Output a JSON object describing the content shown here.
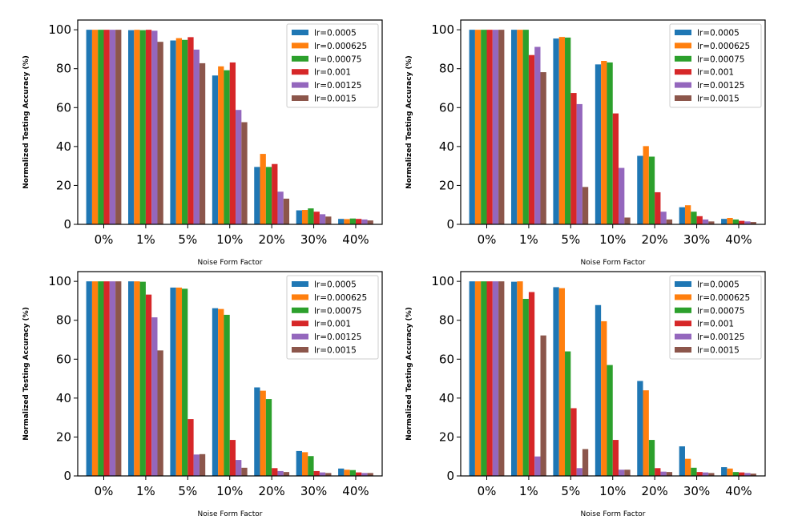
{
  "chart_data": [
    {
      "type": "bar",
      "title": "",
      "xlabel": "Noise Form Factor",
      "ylabel": "Normalized Testing Accuracy (%)",
      "ylim": [
        0,
        105
      ],
      "yticks": [
        0,
        20,
        40,
        60,
        80,
        100
      ],
      "legend": "top-right",
      "categories": [
        "0%",
        "1%",
        "5%",
        "10%",
        "20%",
        "30%",
        "40%"
      ],
      "series": [
        {
          "name": "lr=0.0005",
          "color": "#1f77b4",
          "values": [
            100,
            99.8,
            94.5,
            76.5,
            29.5,
            7.2,
            2.8
          ]
        },
        {
          "name": "lr=0.000625",
          "color": "#ff7f0e",
          "values": [
            100,
            100,
            95.7,
            81.2,
            36.2,
            7.4,
            2.7
          ]
        },
        {
          "name": "lr=0.00075",
          "color": "#2ca02c",
          "values": [
            100,
            99.8,
            94.8,
            79.2,
            29.5,
            8.2,
            3.0
          ]
        },
        {
          "name": "lr=0.001",
          "color": "#d62728",
          "values": [
            100,
            100,
            96.2,
            83.2,
            31.0,
            6.5,
            2.8
          ]
        },
        {
          "name": "lr=0.00125",
          "color": "#9467bd",
          "values": [
            100,
            99.5,
            89.8,
            58.8,
            16.8,
            5.2,
            2.5
          ]
        },
        {
          "name": "lr=0.0015",
          "color": "#8c564b",
          "values": [
            100,
            93.8,
            82.8,
            52.5,
            13.2,
            4.0,
            2.0
          ]
        }
      ]
    },
    {
      "type": "bar",
      "title": "",
      "xlabel": "Noise Form Factor",
      "ylabel": "Normalized Testing Accuracy (%)",
      "ylim": [
        0,
        105
      ],
      "yticks": [
        0,
        20,
        40,
        60,
        80,
        100
      ],
      "legend": "top-right",
      "categories": [
        "0%",
        "1%",
        "5%",
        "10%",
        "20%",
        "30%",
        "40%"
      ],
      "series": [
        {
          "name": "lr=0.0005",
          "color": "#1f77b4",
          "values": [
            100,
            100,
            95.5,
            82.2,
            35.2,
            8.8,
            2.8
          ]
        },
        {
          "name": "lr=0.000625",
          "color": "#ff7f0e",
          "values": [
            100,
            100,
            96.3,
            84.0,
            40.2,
            9.8,
            3.3
          ]
        },
        {
          "name": "lr=0.00075",
          "color": "#2ca02c",
          "values": [
            100,
            100,
            96.0,
            83.2,
            34.8,
            6.5,
            2.5
          ]
        },
        {
          "name": "lr=0.001",
          "color": "#d62728",
          "values": [
            100,
            87.0,
            67.5,
            57.0,
            16.5,
            4.2,
            1.8
          ]
        },
        {
          "name": "lr=0.00125",
          "color": "#9467bd",
          "values": [
            100,
            91.2,
            61.8,
            29.0,
            6.5,
            2.5,
            1.5
          ]
        },
        {
          "name": "lr=0.0015",
          "color": "#8c564b",
          "values": [
            100,
            78.2,
            19.2,
            3.5,
            2.5,
            1.5,
            1.2
          ]
        }
      ]
    },
    {
      "type": "bar",
      "title": "",
      "xlabel": "Noise Form Factor",
      "ylabel": "Normalized Testing Accuracy (%)",
      "ylim": [
        0,
        105
      ],
      "yticks": [
        0,
        20,
        40,
        60,
        80,
        100
      ],
      "legend": "top-right",
      "categories": [
        "0%",
        "1%",
        "5%",
        "10%",
        "20%",
        "30%",
        "40%"
      ],
      "series": [
        {
          "name": "lr=0.0005",
          "color": "#1f77b4",
          "values": [
            100,
            100,
            96.8,
            86.2,
            45.5,
            12.8,
            3.8
          ]
        },
        {
          "name": "lr=0.000625",
          "color": "#ff7f0e",
          "values": [
            100,
            100,
            96.8,
            85.8,
            43.8,
            12.2,
            3.2
          ]
        },
        {
          "name": "lr=0.00075",
          "color": "#2ca02c",
          "values": [
            100,
            99.8,
            96.2,
            82.8,
            39.5,
            10.2,
            3.0
          ]
        },
        {
          "name": "lr=0.001",
          "color": "#d62728",
          "values": [
            100,
            93.2,
            29.2,
            18.5,
            4.0,
            2.5,
            1.8
          ]
        },
        {
          "name": "lr=0.00125",
          "color": "#9467bd",
          "values": [
            100,
            81.5,
            11.0,
            8.2,
            2.5,
            1.8,
            1.5
          ]
        },
        {
          "name": "lr=0.0015",
          "color": "#8c564b",
          "values": [
            100,
            64.5,
            11.2,
            4.2,
            2.0,
            1.5,
            1.5
          ]
        }
      ]
    },
    {
      "type": "bar",
      "title": "",
      "xlabel": "Noise Form Factor",
      "ylabel": "Normalized Testing Accuracy (%)",
      "ylim": [
        0,
        105
      ],
      "yticks": [
        0,
        20,
        40,
        60,
        80,
        100
      ],
      "legend": "top-right",
      "categories": [
        "0%",
        "1%",
        "5%",
        "10%",
        "20%",
        "30%",
        "40%"
      ],
      "series": [
        {
          "name": "lr=0.0005",
          "color": "#1f77b4",
          "values": [
            100,
            99.8,
            97.0,
            87.8,
            48.8,
            15.2,
            4.5
          ]
        },
        {
          "name": "lr=0.000625",
          "color": "#ff7f0e",
          "values": [
            100,
            100,
            96.5,
            79.5,
            44.0,
            8.8,
            3.8
          ]
        },
        {
          "name": "lr=0.00075",
          "color": "#2ca02c",
          "values": [
            100,
            91.0,
            64.0,
            57.0,
            18.5,
            4.2,
            2.0
          ]
        },
        {
          "name": "lr=0.001",
          "color": "#d62728",
          "values": [
            100,
            94.5,
            34.8,
            18.5,
            4.0,
            2.0,
            1.8
          ]
        },
        {
          "name": "lr=0.00125",
          "color": "#9467bd",
          "values": [
            100,
            10.0,
            4.0,
            3.2,
            2.2,
            1.8,
            1.5
          ]
        },
        {
          "name": "lr=0.0015",
          "color": "#8c564b",
          "values": [
            100,
            72.2,
            13.8,
            3.2,
            2.0,
            1.5,
            1.2
          ]
        }
      ]
    }
  ]
}
